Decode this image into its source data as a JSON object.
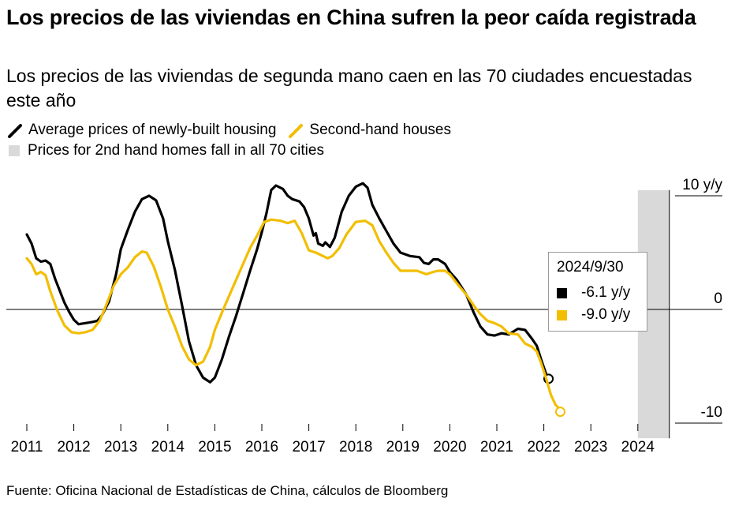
{
  "title": "Los precios de las viviendas en China sufren la peor caída registrada",
  "subtitle": "Los precios de las viviendas de segunda mano caen en las 70 ciudades encuestadas este año",
  "source": "Fuente: Oficina Nacional de Estadísticas de China, cálculos de Bloomberg",
  "colors": {
    "new_homes": "#000000",
    "second_hand": "#f2be00",
    "shade": "#d9d9d9"
  },
  "legend": {
    "new_homes": "Average prices of newly-built housing",
    "second_hand": "Second-hand houses",
    "shaded": "Prices for 2nd hand homes fall in all 70 cities"
  },
  "tooltip": {
    "date": "2024/9/30",
    "new_homes_value": "-6.1 y/y",
    "second_hand_value": "-9.0 y/y"
  },
  "chart_data": {
    "type": "line",
    "x_unit": "year",
    "ylim": [
      -10,
      10
    ],
    "y_ticks": [
      {
        "value": 10,
        "label": "10 y/y"
      },
      {
        "value": 0,
        "label": "0"
      },
      {
        "value": -10,
        "label": "-10"
      }
    ],
    "x_ticks": [
      "2011",
      "2012",
      "2013",
      "2014",
      "2015",
      "2016",
      "2017",
      "2018",
      "2019",
      "2020",
      "2021",
      "2022",
      "2023",
      "2024"
    ],
    "shaded_region": {
      "start": 2024.0,
      "end": 2024.67
    },
    "series": [
      {
        "name": "Average prices of newly-built housing",
        "color": "#000000",
        "points": [
          [
            2011.0,
            6.6
          ],
          [
            2011.1,
            5.8
          ],
          [
            2011.2,
            4.5
          ],
          [
            2011.3,
            4.2
          ],
          [
            2011.4,
            4.3
          ],
          [
            2011.5,
            4.0
          ],
          [
            2011.6,
            2.7
          ],
          [
            2011.8,
            0.6
          ],
          [
            2011.9,
            -0.2
          ],
          [
            2012.0,
            -0.9
          ],
          [
            2012.1,
            -1.3
          ],
          [
            2012.25,
            -1.2
          ],
          [
            2012.4,
            -1.1
          ],
          [
            2012.5,
            -1.0
          ],
          [
            2012.6,
            -0.5
          ],
          [
            2012.75,
            0.7
          ],
          [
            2012.9,
            3.1
          ],
          [
            2013.0,
            5.3
          ],
          [
            2013.15,
            7.0
          ],
          [
            2013.3,
            8.6
          ],
          [
            2013.45,
            9.7
          ],
          [
            2013.6,
            10.0
          ],
          [
            2013.75,
            9.6
          ],
          [
            2013.9,
            8.0
          ],
          [
            2014.0,
            6.0
          ],
          [
            2014.15,
            3.5
          ],
          [
            2014.3,
            0.4
          ],
          [
            2014.45,
            -2.8
          ],
          [
            2014.6,
            -4.9
          ],
          [
            2014.75,
            -6.0
          ],
          [
            2014.9,
            -6.4
          ],
          [
            2015.0,
            -6.0
          ],
          [
            2015.15,
            -4.4
          ],
          [
            2015.3,
            -2.4
          ],
          [
            2015.45,
            -0.6
          ],
          [
            2015.6,
            1.4
          ],
          [
            2015.75,
            3.4
          ],
          [
            2015.9,
            5.3
          ],
          [
            2016.0,
            6.8
          ],
          [
            2016.1,
            8.5
          ],
          [
            2016.2,
            10.5
          ],
          [
            2016.3,
            10.9
          ],
          [
            2016.45,
            10.6
          ],
          [
            2016.55,
            10.0
          ],
          [
            2016.65,
            9.7
          ],
          [
            2016.8,
            9.5
          ],
          [
            2016.9,
            9.0
          ],
          [
            2017.0,
            8.0
          ],
          [
            2017.1,
            6.5
          ],
          [
            2017.15,
            6.7
          ],
          [
            2017.2,
            5.8
          ],
          [
            2017.3,
            5.6
          ],
          [
            2017.35,
            5.9
          ],
          [
            2017.45,
            5.5
          ],
          [
            2017.55,
            6.3
          ],
          [
            2017.7,
            8.6
          ],
          [
            2017.85,
            10.0
          ],
          [
            2018.0,
            10.8
          ],
          [
            2018.15,
            11.1
          ],
          [
            2018.25,
            10.7
          ],
          [
            2018.35,
            9.2
          ],
          [
            2018.5,
            8.0
          ],
          [
            2018.65,
            6.9
          ],
          [
            2018.8,
            5.8
          ],
          [
            2018.95,
            5.0
          ],
          [
            2019.15,
            4.7
          ],
          [
            2019.35,
            4.6
          ],
          [
            2019.45,
            4.1
          ],
          [
            2019.55,
            4.0
          ],
          [
            2019.65,
            4.4
          ],
          [
            2019.75,
            4.4
          ],
          [
            2019.9,
            4.0
          ],
          [
            2020.0,
            3.3
          ],
          [
            2020.15,
            2.6
          ],
          [
            2020.35,
            1.3
          ],
          [
            2020.5,
            -0.2
          ],
          [
            2020.65,
            -1.5
          ],
          [
            2020.8,
            -2.2
          ],
          [
            2020.95,
            -2.3
          ],
          [
            2021.1,
            -2.1
          ],
          [
            2021.25,
            -2.2
          ],
          [
            2021.45,
            -1.7
          ],
          [
            2021.6,
            -1.8
          ],
          [
            2021.75,
            -2.6
          ],
          [
            2021.85,
            -3.2
          ],
          [
            2021.95,
            -4.5
          ],
          [
            2022.05,
            -5.7
          ],
          [
            2022.1,
            -6.1
          ]
        ],
        "offset_year": 2011,
        "end_label": "-6.1 y/y"
      },
      {
        "name": "Second-hand houses",
        "color": "#f2be00",
        "points": [
          [
            2011.0,
            4.5
          ],
          [
            2011.1,
            4.0
          ],
          [
            2011.2,
            3.1
          ],
          [
            2011.3,
            3.3
          ],
          [
            2011.4,
            3.0
          ],
          [
            2011.5,
            1.6
          ],
          [
            2011.65,
            -0.1
          ],
          [
            2011.8,
            -1.4
          ],
          [
            2011.95,
            -2.0
          ],
          [
            2012.1,
            -2.1
          ],
          [
            2012.25,
            -2.0
          ],
          [
            2012.4,
            -1.8
          ],
          [
            2012.55,
            -1.0
          ],
          [
            2012.7,
            0.5
          ],
          [
            2012.85,
            2.1
          ],
          [
            2013.0,
            3.1
          ],
          [
            2013.15,
            3.7
          ],
          [
            2013.3,
            4.6
          ],
          [
            2013.45,
            5.1
          ],
          [
            2013.55,
            5.0
          ],
          [
            2013.7,
            3.8
          ],
          [
            2013.85,
            2.0
          ],
          [
            2014.0,
            0.0
          ],
          [
            2014.15,
            -1.5
          ],
          [
            2014.3,
            -3.2
          ],
          [
            2014.45,
            -4.4
          ],
          [
            2014.6,
            -4.9
          ],
          [
            2014.75,
            -4.6
          ],
          [
            2014.9,
            -3.3
          ],
          [
            2015.0,
            -1.8
          ],
          [
            2015.2,
            0.2
          ],
          [
            2015.4,
            2.1
          ],
          [
            2015.6,
            4.0
          ],
          [
            2015.75,
            5.4
          ],
          [
            2015.9,
            6.5
          ],
          [
            2016.05,
            7.7
          ],
          [
            2016.2,
            7.9
          ],
          [
            2016.4,
            7.8
          ],
          [
            2016.55,
            7.6
          ],
          [
            2016.7,
            7.8
          ],
          [
            2016.85,
            6.7
          ],
          [
            2017.0,
            5.2
          ],
          [
            2017.15,
            5.0
          ],
          [
            2017.3,
            4.7
          ],
          [
            2017.4,
            4.5
          ],
          [
            2017.5,
            4.7
          ],
          [
            2017.65,
            5.4
          ],
          [
            2017.8,
            6.6
          ],
          [
            2018.0,
            7.7
          ],
          [
            2018.2,
            7.8
          ],
          [
            2018.35,
            7.4
          ],
          [
            2018.5,
            6.0
          ],
          [
            2018.65,
            5.0
          ],
          [
            2018.8,
            4.1
          ],
          [
            2018.95,
            3.4
          ],
          [
            2019.1,
            3.4
          ],
          [
            2019.3,
            3.4
          ],
          [
            2019.5,
            3.1
          ],
          [
            2019.65,
            3.3
          ],
          [
            2019.75,
            3.4
          ],
          [
            2019.9,
            3.4
          ],
          [
            2020.0,
            3.1
          ],
          [
            2020.15,
            2.3
          ],
          [
            2020.35,
            1.3
          ],
          [
            2020.5,
            0.4
          ],
          [
            2020.65,
            -0.4
          ],
          [
            2020.8,
            -1.0
          ],
          [
            2020.95,
            -1.2
          ],
          [
            2021.1,
            -1.5
          ],
          [
            2021.25,
            -2.1
          ],
          [
            2021.45,
            -2.2
          ],
          [
            2021.6,
            -3.0
          ],
          [
            2021.75,
            -3.3
          ],
          [
            2021.85,
            -3.7
          ],
          [
            2021.95,
            -4.8
          ],
          [
            2022.05,
            -6.1
          ],
          [
            2022.15,
            -7.5
          ],
          [
            2022.25,
            -8.4
          ],
          [
            2022.3,
            -8.6
          ],
          [
            2022.35,
            -9.0
          ]
        ],
        "offset_year": 2011,
        "end_label": "-9.0 y/y"
      }
    ]
  }
}
